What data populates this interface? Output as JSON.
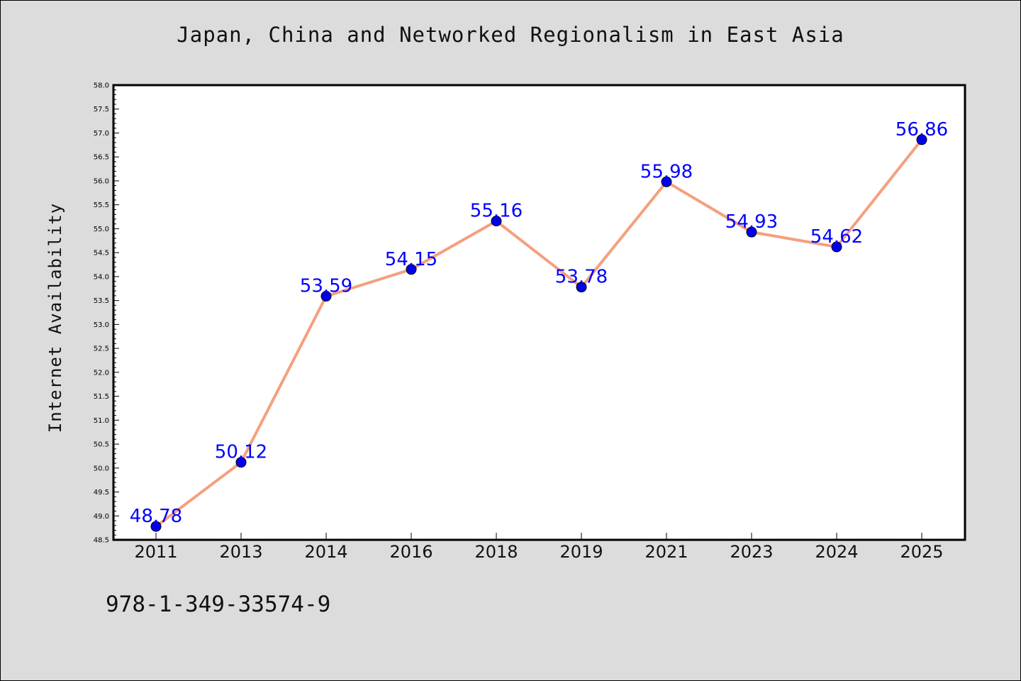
{
  "chart_data": {
    "type": "line",
    "title": "Japan, China and Networked Regionalism in East Asia",
    "xlabel": "",
    "ylabel": "Internet Availability",
    "categories": [
      "2011",
      "2013",
      "2014",
      "2016",
      "2018",
      "2019",
      "2021",
      "2023",
      "2024",
      "2025"
    ],
    "series": [
      {
        "values": [
          48.78,
          50.12,
          53.59,
          54.15,
          55.16,
          53.78,
          55.98,
          54.93,
          54.62,
          56.86
        ],
        "line_color": "#f4a07e",
        "marker_color": "#0000ee"
      }
    ],
    "data_labels": [
      "48.78",
      "50.12",
      "53.59",
      "54.15",
      "55.16",
      "53.78",
      "55.98",
      "54.93",
      "54.62",
      "56.86"
    ],
    "ylim": [
      48.5,
      58.0
    ],
    "yticks": [
      "48.5",
      "49.0",
      "49.5",
      "50.0",
      "50.5",
      "51.0",
      "51.5",
      "52.0",
      "52.5",
      "53.0",
      "53.5",
      "54.0",
      "54.5",
      "55.0",
      "55.5",
      "56.0",
      "56.5",
      "57.0",
      "57.5",
      "58.0"
    ],
    "grid": false,
    "legend": "none"
  },
  "footer": {
    "isbn": "978-1-349-33574-9"
  }
}
